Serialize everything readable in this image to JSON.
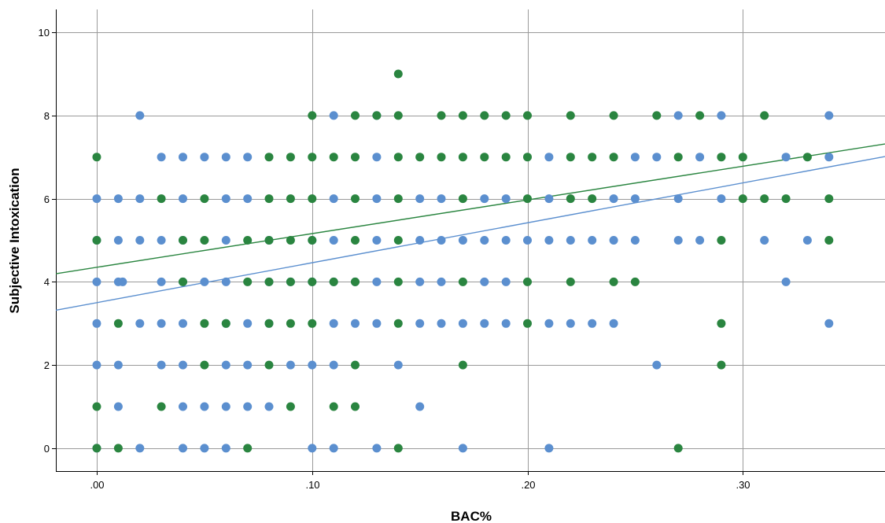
{
  "chart_data": {
    "type": "scatter",
    "title": "",
    "xlabel": "BAC%",
    "ylabel": "Subjective Intoxication",
    "xlim": [
      -0.019,
      0.366
    ],
    "ylim": [
      -0.55,
      10.55
    ],
    "x_ticks": [
      0.0,
      0.1,
      0.2,
      0.3
    ],
    "x_tick_labels": [
      ".00",
      ".10",
      ".20",
      ".30"
    ],
    "y_ticks": [
      0,
      2,
      4,
      6,
      8,
      10
    ],
    "y_tick_labels": [
      "0",
      "2",
      "4",
      "6",
      "8",
      "10"
    ],
    "grid": true,
    "legend": false,
    "series": [
      {
        "color": "#5b8fcf",
        "fit_line": {
          "intercept": 3.5,
          "slope": 9.6
        },
        "points": [
          [
            0.0,
            0
          ],
          [
            0.02,
            0
          ],
          [
            0.04,
            0
          ],
          [
            0.05,
            0
          ],
          [
            0.06,
            0
          ],
          [
            0.1,
            0
          ],
          [
            0.11,
            0
          ],
          [
            0.13,
            0
          ],
          [
            0.17,
            0
          ],
          [
            0.21,
            0
          ],
          [
            0.01,
            1
          ],
          [
            0.04,
            1
          ],
          [
            0.05,
            1
          ],
          [
            0.06,
            1
          ],
          [
            0.07,
            1
          ],
          [
            0.08,
            1
          ],
          [
            0.15,
            1
          ],
          [
            0.0,
            2
          ],
          [
            0.01,
            2
          ],
          [
            0.03,
            2
          ],
          [
            0.04,
            2
          ],
          [
            0.06,
            2
          ],
          [
            0.07,
            2
          ],
          [
            0.09,
            2
          ],
          [
            0.1,
            2
          ],
          [
            0.11,
            2
          ],
          [
            0.14,
            2
          ],
          [
            0.26,
            2
          ],
          [
            0.0,
            3
          ],
          [
            0.02,
            3
          ],
          [
            0.03,
            3
          ],
          [
            0.04,
            3
          ],
          [
            0.06,
            3
          ],
          [
            0.07,
            3
          ],
          [
            0.08,
            3
          ],
          [
            0.11,
            3
          ],
          [
            0.12,
            3
          ],
          [
            0.13,
            3
          ],
          [
            0.15,
            3
          ],
          [
            0.16,
            3
          ],
          [
            0.17,
            3
          ],
          [
            0.18,
            3
          ],
          [
            0.19,
            3
          ],
          [
            0.21,
            3
          ],
          [
            0.22,
            3
          ],
          [
            0.23,
            3
          ],
          [
            0.24,
            3
          ],
          [
            0.34,
            3
          ],
          [
            0.0,
            4
          ],
          [
            0.01,
            4
          ],
          [
            0.012,
            4
          ],
          [
            0.03,
            4
          ],
          [
            0.04,
            4
          ],
          [
            0.05,
            4
          ],
          [
            0.06,
            4
          ],
          [
            0.08,
            4
          ],
          [
            0.09,
            4
          ],
          [
            0.1,
            4
          ],
          [
            0.11,
            4
          ],
          [
            0.12,
            4
          ],
          [
            0.13,
            4
          ],
          [
            0.15,
            4
          ],
          [
            0.16,
            4
          ],
          [
            0.18,
            4
          ],
          [
            0.19,
            4
          ],
          [
            0.32,
            4
          ],
          [
            0.0,
            5
          ],
          [
            0.01,
            5
          ],
          [
            0.02,
            5
          ],
          [
            0.03,
            5
          ],
          [
            0.04,
            5
          ],
          [
            0.06,
            5
          ],
          [
            0.08,
            5
          ],
          [
            0.1,
            5
          ],
          [
            0.11,
            5
          ],
          [
            0.13,
            5
          ],
          [
            0.15,
            5
          ],
          [
            0.16,
            5
          ],
          [
            0.17,
            5
          ],
          [
            0.18,
            5
          ],
          [
            0.19,
            5
          ],
          [
            0.2,
            5
          ],
          [
            0.21,
            5
          ],
          [
            0.22,
            5
          ],
          [
            0.23,
            5
          ],
          [
            0.24,
            5
          ],
          [
            0.25,
            5
          ],
          [
            0.27,
            5
          ],
          [
            0.28,
            5
          ],
          [
            0.31,
            5
          ],
          [
            0.33,
            5
          ],
          [
            0.0,
            6
          ],
          [
            0.01,
            6
          ],
          [
            0.02,
            6
          ],
          [
            0.04,
            6
          ],
          [
            0.06,
            6
          ],
          [
            0.07,
            6
          ],
          [
            0.11,
            6
          ],
          [
            0.13,
            6
          ],
          [
            0.15,
            6
          ],
          [
            0.16,
            6
          ],
          [
            0.18,
            6
          ],
          [
            0.19,
            6
          ],
          [
            0.21,
            6
          ],
          [
            0.24,
            6
          ],
          [
            0.25,
            6
          ],
          [
            0.27,
            6
          ],
          [
            0.29,
            6
          ],
          [
            0.03,
            7
          ],
          [
            0.04,
            7
          ],
          [
            0.05,
            7
          ],
          [
            0.06,
            7
          ],
          [
            0.07,
            7
          ],
          [
            0.13,
            7
          ],
          [
            0.21,
            7
          ],
          [
            0.25,
            7
          ],
          [
            0.26,
            7
          ],
          [
            0.28,
            7
          ],
          [
            0.32,
            7
          ],
          [
            0.34,
            7
          ],
          [
            0.02,
            8
          ],
          [
            0.11,
            8
          ],
          [
            0.13,
            8
          ],
          [
            0.27,
            8
          ],
          [
            0.29,
            8
          ],
          [
            0.34,
            8
          ]
        ]
      },
      {
        "color": "#2a8540",
        "fit_line": {
          "intercept": 4.35,
          "slope": 8.1
        },
        "points": [
          [
            0.0,
            0
          ],
          [
            0.01,
            0
          ],
          [
            0.07,
            0
          ],
          [
            0.14,
            0
          ],
          [
            0.27,
            0
          ],
          [
            0.0,
            1
          ],
          [
            0.03,
            1
          ],
          [
            0.09,
            1
          ],
          [
            0.11,
            1
          ],
          [
            0.12,
            1
          ],
          [
            0.05,
            2
          ],
          [
            0.08,
            2
          ],
          [
            0.12,
            2
          ],
          [
            0.17,
            2
          ],
          [
            0.29,
            2
          ],
          [
            0.01,
            3
          ],
          [
            0.05,
            3
          ],
          [
            0.06,
            3
          ],
          [
            0.08,
            3
          ],
          [
            0.09,
            3
          ],
          [
            0.1,
            3
          ],
          [
            0.14,
            3
          ],
          [
            0.2,
            3
          ],
          [
            0.29,
            3
          ],
          [
            0.04,
            4
          ],
          [
            0.07,
            4
          ],
          [
            0.08,
            4
          ],
          [
            0.09,
            4
          ],
          [
            0.1,
            4
          ],
          [
            0.11,
            4
          ],
          [
            0.12,
            4
          ],
          [
            0.14,
            4
          ],
          [
            0.17,
            4
          ],
          [
            0.2,
            4
          ],
          [
            0.22,
            4
          ],
          [
            0.24,
            4
          ],
          [
            0.25,
            4
          ],
          [
            0.0,
            5
          ],
          [
            0.04,
            5
          ],
          [
            0.05,
            5
          ],
          [
            0.07,
            5
          ],
          [
            0.08,
            5
          ],
          [
            0.09,
            5
          ],
          [
            0.1,
            5
          ],
          [
            0.12,
            5
          ],
          [
            0.14,
            5
          ],
          [
            0.29,
            5
          ],
          [
            0.34,
            5
          ],
          [
            0.03,
            6
          ],
          [
            0.05,
            6
          ],
          [
            0.08,
            6
          ],
          [
            0.09,
            6
          ],
          [
            0.1,
            6
          ],
          [
            0.12,
            6
          ],
          [
            0.14,
            6
          ],
          [
            0.17,
            6
          ],
          [
            0.2,
            6
          ],
          [
            0.22,
            6
          ],
          [
            0.23,
            6
          ],
          [
            0.3,
            6
          ],
          [
            0.31,
            6
          ],
          [
            0.32,
            6
          ],
          [
            0.34,
            6
          ],
          [
            0.0,
            7
          ],
          [
            0.08,
            7
          ],
          [
            0.09,
            7
          ],
          [
            0.1,
            7
          ],
          [
            0.11,
            7
          ],
          [
            0.12,
            7
          ],
          [
            0.14,
            7
          ],
          [
            0.15,
            7
          ],
          [
            0.16,
            7
          ],
          [
            0.17,
            7
          ],
          [
            0.18,
            7
          ],
          [
            0.19,
            7
          ],
          [
            0.2,
            7
          ],
          [
            0.22,
            7
          ],
          [
            0.23,
            7
          ],
          [
            0.24,
            7
          ],
          [
            0.27,
            7
          ],
          [
            0.29,
            7
          ],
          [
            0.3,
            7
          ],
          [
            0.33,
            7
          ],
          [
            0.1,
            8
          ],
          [
            0.12,
            8
          ],
          [
            0.13,
            8
          ],
          [
            0.14,
            8
          ],
          [
            0.16,
            8
          ],
          [
            0.17,
            8
          ],
          [
            0.18,
            8
          ],
          [
            0.19,
            8
          ],
          [
            0.2,
            8
          ],
          [
            0.22,
            8
          ],
          [
            0.24,
            8
          ],
          [
            0.26,
            8
          ],
          [
            0.28,
            8
          ],
          [
            0.31,
            8
          ],
          [
            0.14,
            9
          ]
        ]
      }
    ]
  }
}
